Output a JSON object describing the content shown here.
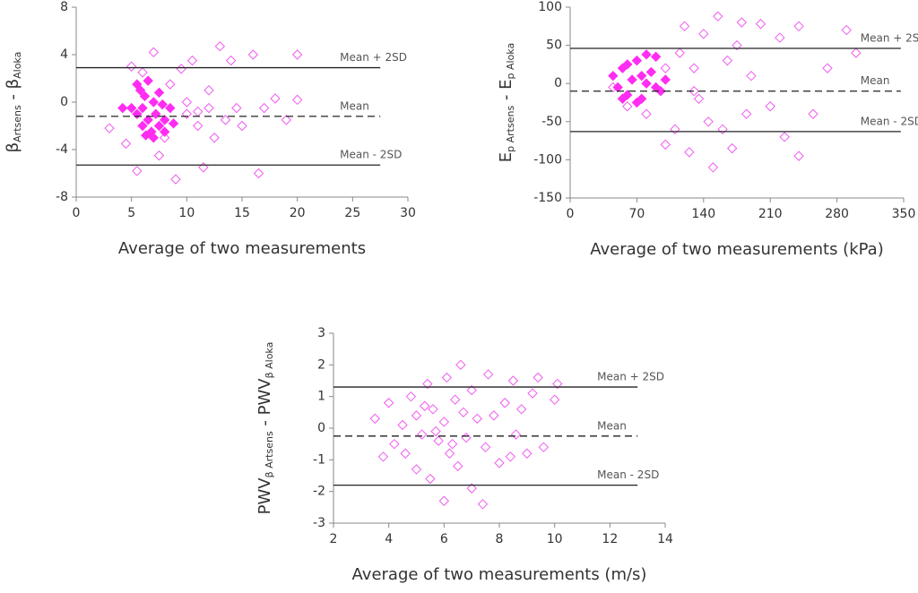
{
  "chart_data": [
    {
      "type": "scatter",
      "ylabel": [
        "β",
        "Artsens",
        " - β",
        "Aloka"
      ],
      "xlabel": "Average of two measurements",
      "xlim": [
        0,
        30
      ],
      "xticks": [
        0,
        5,
        10,
        15,
        20,
        25,
        30
      ],
      "ylim": [
        -8,
        8
      ],
      "yticks": [
        -8,
        -4,
        0,
        4,
        8
      ],
      "hlines": [
        {
          "label": "Mean + 2SD",
          "value": 2.9,
          "dashed": false,
          "xspan": [
            0,
            27.5
          ]
        },
        {
          "label": "Mean",
          "value": -1.2,
          "dashed": true,
          "xspan": [
            0,
            27.5
          ]
        },
        {
          "label": "Mean - 2SD",
          "value": -5.3,
          "dashed": false,
          "xspan": [
            0,
            27.5
          ]
        }
      ],
      "series": [
        {
          "filled": false,
          "color": "#f05cf0",
          "x": [
            3,
            4.5,
            5,
            5.5,
            6,
            7,
            7.5,
            8,
            8.5,
            9,
            9.5,
            10,
            10.5,
            11,
            11.5,
            12,
            12.5,
            13,
            13.5,
            14,
            14.5,
            15,
            16,
            16.5,
            17,
            18,
            20,
            20,
            19,
            12,
            10,
            11
          ],
          "y": [
            -2.2,
            -3.5,
            3,
            -5.8,
            2.5,
            4.2,
            -4.5,
            -3,
            1.5,
            -6.5,
            2.8,
            -1,
            3.5,
            -2,
            -5.5,
            1,
            -3,
            4.7,
            -1.5,
            3.5,
            -0.5,
            -2,
            4,
            -6,
            -0.5,
            0.3,
            0.2,
            4,
            -1.5,
            -0.5,
            0,
            -0.8
          ]
        },
        {
          "filled": true,
          "color": "#ff2cf2",
          "x": [
            5.5,
            6,
            6.2,
            6.5,
            6.8,
            7,
            7.2,
            7.5,
            8,
            8.5,
            6,
            7,
            8,
            5.8,
            6.5,
            7.5,
            8.8,
            5.5,
            6.3,
            7.8,
            5,
            4.2
          ],
          "y": [
            1.5,
            -0.5,
            0.5,
            -1.5,
            -2.5,
            0,
            -1,
            -2,
            -1.5,
            -0.5,
            -2,
            -3,
            -2.5,
            1,
            1.8,
            0.8,
            -1.8,
            -1,
            -2.8,
            -0.2,
            -0.5,
            -0.5
          ]
        }
      ]
    },
    {
      "type": "scatter",
      "ylabel": [
        "E",
        "p Artsens",
        " - E",
        "p Aloka"
      ],
      "xlabel": "Average of two measurements (kPa)",
      "xlim": [
        0,
        350
      ],
      "xticks": [
        0,
        70,
        140,
        210,
        280,
        350
      ],
      "ylim": [
        -150,
        100
      ],
      "yticks": [
        -150,
        -100,
        -50,
        0,
        50,
        100
      ],
      "hlines": [
        {
          "label": "Mean + 2SD",
          "value": 46,
          "dashed": false,
          "xspan": [
            0,
            347
          ]
        },
        {
          "label": "Mean",
          "value": -10,
          "dashed": true,
          "xspan": [
            0,
            347
          ]
        },
        {
          "label": "Mean - 2SD",
          "value": -63,
          "dashed": false,
          "xspan": [
            0,
            347
          ]
        }
      ],
      "series": [
        {
          "filled": false,
          "color": "#f05cf0",
          "x": [
            45,
            60,
            80,
            100,
            110,
            115,
            120,
            125,
            130,
            135,
            140,
            145,
            150,
            155,
            160,
            165,
            170,
            175,
            180,
            185,
            190,
            200,
            210,
            220,
            225,
            240,
            255,
            270,
            290,
            300,
            240,
            100,
            130
          ],
          "y": [
            -5,
            -30,
            -40,
            -80,
            -60,
            40,
            75,
            -90,
            20,
            -20,
            65,
            -50,
            -110,
            88,
            -60,
            30,
            -85,
            50,
            80,
            -40,
            10,
            78,
            -30,
            60,
            -70,
            75,
            -40,
            20,
            70,
            40,
            -95,
            20,
            -10
          ]
        },
        {
          "filled": true,
          "color": "#ff2cf2",
          "x": [
            45,
            50,
            55,
            60,
            65,
            70,
            75,
            80,
            85,
            90,
            95,
            100,
            70,
            60,
            80,
            90,
            55,
            75
          ],
          "y": [
            10,
            -5,
            20,
            -15,
            5,
            30,
            -20,
            0,
            15,
            35,
            -10,
            5,
            -25,
            25,
            38,
            -5,
            -20,
            10
          ]
        }
      ]
    },
    {
      "type": "scatter",
      "ylabel": [
        "PWV",
        "β Artsens",
        " - PWV",
        "β Aloka"
      ],
      "xlabel": "Average of two measurements (m/s)",
      "xlim": [
        2,
        14
      ],
      "xticks": [
        2,
        4,
        6,
        8,
        10,
        12,
        14
      ],
      "ylim": [
        -3,
        3
      ],
      "yticks": [
        -3,
        -2,
        -1,
        0,
        1,
        2,
        3
      ],
      "hlines": [
        {
          "label": "Mean + 2SD",
          "value": 1.3,
          "dashed": false,
          "xspan": [
            2,
            13
          ]
        },
        {
          "label": "Mean",
          "value": -0.25,
          "dashed": true,
          "xspan": [
            2,
            13
          ]
        },
        {
          "label": "Mean - 2SD",
          "value": -1.8,
          "dashed": false,
          "xspan": [
            2,
            13
          ]
        }
      ],
      "series": [
        {
          "filled": false,
          "color": "#f05cf0",
          "x": [
            3.5,
            3.8,
            4,
            4.2,
            4.5,
            4.8,
            5,
            5,
            5.2,
            5.4,
            5.5,
            5.6,
            5.8,
            6,
            6,
            6.1,
            6.2,
            6.4,
            6.5,
            6.6,
            6.8,
            7,
            7,
            7.2,
            7.4,
            7.5,
            7.6,
            7.8,
            8,
            8.2,
            8.4,
            8.5,
            8.6,
            8.8,
            9,
            9.2,
            9.4,
            9.6,
            10,
            10.1,
            4.6,
            5.7,
            6.3,
            6.7,
            5.3
          ],
          "y": [
            0.3,
            -0.9,
            0.8,
            -0.5,
            0.1,
            1,
            -1.3,
            0.4,
            -0.2,
            1.4,
            -1.6,
            0.6,
            -0.4,
            -2.3,
            0.2,
            1.6,
            -0.8,
            0.9,
            -1.2,
            2,
            -0.3,
            -1.9,
            1.2,
            0.3,
            -2.4,
            -0.6,
            1.7,
            0.4,
            -1.1,
            0.8,
            -0.9,
            1.5,
            -0.2,
            0.6,
            -0.8,
            1.1,
            1.6,
            -0.6,
            0.9,
            1.4,
            -0.8,
            -0.1,
            -0.5,
            0.5,
            0.7
          ]
        }
      ]
    }
  ]
}
